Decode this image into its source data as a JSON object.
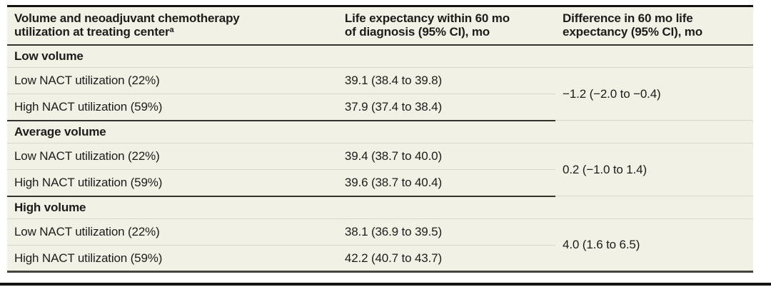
{
  "table": {
    "background_color": "#f2f1e6",
    "rule_color_dark": "#33322c",
    "rule_color_light": "#dad8ca",
    "header": {
      "col1": {
        "line1": "Volume and neoadjuvant chemotherapy",
        "line2": "utilization at treating center",
        "footnote_marker": "a"
      },
      "col2": {
        "line1": "Life expectancy within 60 mo",
        "line2": "of diagnosis (95% CI), mo"
      },
      "col3": {
        "line1": "Difference in 60 mo life",
        "line2": "expectancy (95% CI), mo"
      }
    },
    "groups": [
      {
        "label": "Low volume",
        "rows": [
          {
            "label": "Low NACT utilization (22%)",
            "value": "39.1 (38.4 to 39.8)"
          },
          {
            "label": "High NACT utilization (59%)",
            "value": "37.9 (37.4 to 38.4)"
          }
        ],
        "difference": "−1.2 (−2.0 to −0.4)"
      },
      {
        "label": "Average volume",
        "rows": [
          {
            "label": "Low NACT utilization (22%)",
            "value": "39.4 (38.7 to 40.0)"
          },
          {
            "label": "High NACT utilization (59%)",
            "value": "39.6 (38.7 to 40.4)"
          }
        ],
        "difference": "0.2 (−1.0 to 1.4)"
      },
      {
        "label": "High volume",
        "rows": [
          {
            "label": "Low NACT utilization (22%)",
            "value": "38.1 (36.9 to 39.5)"
          },
          {
            "label": "High NACT utilization (59%)",
            "value": "42.2 (40.7 to 43.7)"
          }
        ],
        "difference": "4.0 (1.6 to 6.5)"
      }
    ]
  }
}
